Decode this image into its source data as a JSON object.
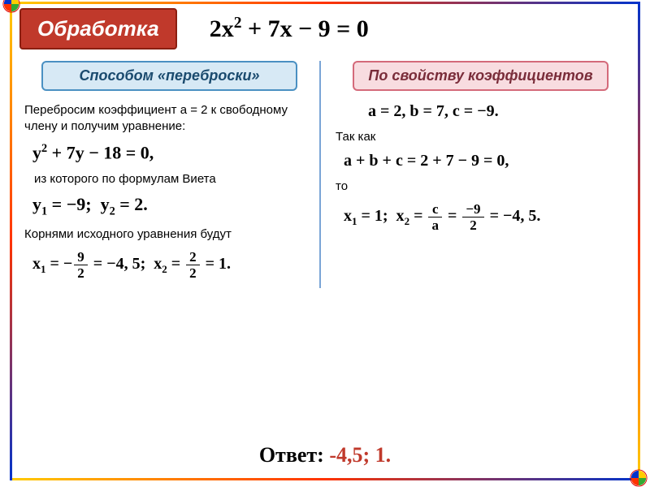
{
  "frame": {
    "gradient_colors": [
      "#ffcc00",
      "#ff3300",
      "#0033cc"
    ]
  },
  "header": {
    "title": "Обработка",
    "title_box": {
      "bg": "#c0392b",
      "border": "#8b1e10",
      "text_color": "#ffffff"
    },
    "equation_html": "2<span class='mi'>x</span><span class='sup'>2</span> + 7<span class='mi'>x</span> − 9 = 0"
  },
  "method_left": {
    "label": "Способом «переброски»",
    "box": {
      "bg": "#d7e9f5",
      "border": "#4a90c2",
      "text_color": "#1a4a6e"
    },
    "p1": "Перебросим коэффициент а = 2 к свободному члену и получим уравнение:",
    "eq1_html": "<span class='mi'>y</span><span class='sup'>2</span> + 7<span class='mi'>y</span> − 18 = 0,",
    "p2": "из которого по формулам Виета",
    "eq2_html": "<span class='mi'>y</span><span class='sub'>1</span> = −9;&nbsp;&nbsp;<span class='mi'>y</span><span class='sub'>2</span> = 2.",
    "p3": "Корнями исходного уравнения будут",
    "eq3_html": "x<span class='sub'>1</span> = −<span class='frac'><span class='num'>9</span><span class='den'>2</span></span> = −4, 5;&nbsp;&nbsp;x<span class='sub'>2</span> = <span class='frac'><span class='num'>2</span><span class='den'>2</span></span> = 1."
  },
  "method_right": {
    "label": "По свойству коэффициентов",
    "box": {
      "bg": "#f8dce0",
      "border": "#d46a7a",
      "text_color": "#7a2d3a"
    },
    "eq1_html": "a = 2, b = 7, c = −9.",
    "p1": "Так как",
    "eq2_html": "<span class='mi'>a</span> + <span class='mi'>b</span> + <span class='mi'>c</span> = 2 + 7 − 9 = 0,",
    "p2": "то",
    "eq3_html": "x<span class='sub'>1</span> = 1;&nbsp;&nbsp;x<span class='sub'>2</span> = <span class='frac'><span class='num'>c</span><span class='den'>a</span></span> = <span class='frac'><span class='num'>−9</span><span class='den'>2</span></span> = −4, 5."
  },
  "answer": {
    "label": "Ответ: ",
    "value": "-4,5; 1.",
    "value_color": "#c0392b"
  }
}
